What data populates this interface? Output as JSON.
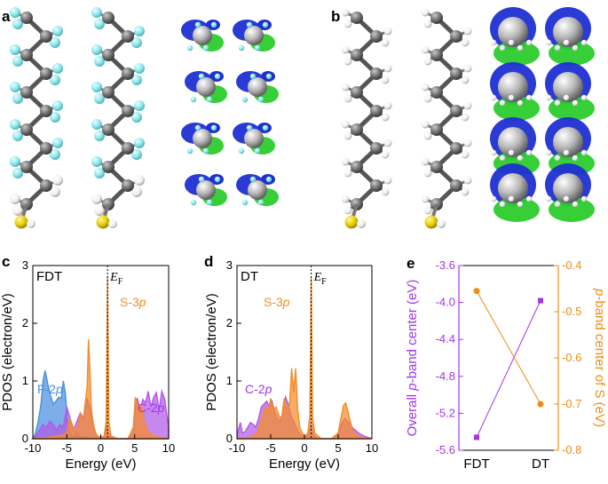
{
  "panels": {
    "a": "a",
    "b": "b",
    "c": "c",
    "d": "d",
    "e": "e"
  },
  "colors": {
    "carbon": "#6f6f6f",
    "fluorine": "#8fe6ec",
    "hydrogen": "#f4f4f4",
    "sulfur": "#e7cf00",
    "charge_pos": "#1f2fd2",
    "charge_neg": "#2ccc2c",
    "f2p": "#4a8fe0",
    "s3p": "#f58c28",
    "c2p": "#b05ae8",
    "violet": "#a335e8",
    "orange": "#f08c14"
  },
  "chart_data": [
    {
      "id": "c",
      "type": "area",
      "label": "FDT",
      "ef_label": "E",
      "ef_sub": "F",
      "xlabel": "Energy (eV)",
      "ylabel": "PDOS (electron/eV)",
      "xlim": [
        -10,
        10
      ],
      "ylim": [
        0,
        3
      ],
      "xticks": [
        -10,
        -5,
        0,
        5,
        10
      ],
      "yticks": [
        0,
        1,
        2,
        3
      ],
      "fermi": 1.0,
      "series": [
        {
          "name": "F-2p",
          "color": "#4a8fe0",
          "x": [
            -10,
            -9.6,
            -9.2,
            -8.8,
            -8.5,
            -8.2,
            -7.8,
            -7.4,
            -7.0,
            -6.6,
            -6.2,
            -5.8,
            -5.5,
            -5.2,
            -4.9,
            -4.6,
            -4.3,
            -4.0,
            -3.5,
            -3.0,
            -2.0,
            0,
            10
          ],
          "y": [
            0,
            0.1,
            0.3,
            0.6,
            1.0,
            1.18,
            0.95,
            0.75,
            0.6,
            0.65,
            0.72,
            0.7,
            1.0,
            0.78,
            0.3,
            0.12,
            0.06,
            0.03,
            0.1,
            0.04,
            0.02,
            0,
            0
          ]
        },
        {
          "name": "C-2p",
          "color": "#b05ae8",
          "x": [
            -10,
            -9.7,
            -9.4,
            -9.0,
            -8.5,
            -8.0,
            -7.5,
            -7.0,
            -6.5,
            -6.0,
            -5.5,
            -5.0,
            -4.5,
            -4.0,
            -3.5,
            -3.0,
            -2.5,
            -2.0,
            -1.5,
            -1.0,
            -0.5,
            0,
            0.5,
            0.7,
            0.9,
            1.1,
            1.3,
            1.5,
            2.0,
            3.0,
            4.0,
            4.8,
            5.1,
            5.4,
            5.8,
            6.2,
            6.6,
            7.0,
            7.4,
            7.8,
            8.2,
            8.6,
            9.0,
            9.4,
            9.8,
            10
          ],
          "y": [
            0,
            0.02,
            0.08,
            0.15,
            0.25,
            0.2,
            0.3,
            0.25,
            0.15,
            0.25,
            0.2,
            0.55,
            0.35,
            0.15,
            0.3,
            0.45,
            0.35,
            0.7,
            0.5,
            0.15,
            0.05,
            0.02,
            0.05,
            0.12,
            0.22,
            0.12,
            0.05,
            0.02,
            0,
            0,
            0,
            0.1,
            0.55,
            0.7,
            0.5,
            0.68,
            0.62,
            0.82,
            0.55,
            0.72,
            0.8,
            0.5,
            0.82,
            0.7,
            0.35,
            0.2
          ]
        },
        {
          "name": "S-3p",
          "color": "#f58c28",
          "x": [
            -10,
            -8.0,
            -6.0,
            -5.0,
            -4.6,
            -4.2,
            -3.8,
            -3.4,
            -3.0,
            -2.6,
            -2.3,
            -2.0,
            -1.8,
            -1.6,
            -1.4,
            -1.2,
            -1.0,
            -0.6,
            0,
            0.5,
            0.8,
            0.95,
            1.0,
            1.05,
            1.2,
            1.5,
            2.5,
            4.0,
            4.8,
            5.1,
            5.4,
            5.7,
            6.0,
            6.4,
            7.0,
            8.0,
            10
          ],
          "y": [
            0,
            0.02,
            0.05,
            0.1,
            0.35,
            0.25,
            0.12,
            0.2,
            0.45,
            0.3,
            0.6,
            0.9,
            1.72,
            1.2,
            0.55,
            0.35,
            0.2,
            0.05,
            0.02,
            0.05,
            0.3,
            2.2,
            2.82,
            2.2,
            0.3,
            0.05,
            0,
            0,
            0.2,
            0.72,
            0.6,
            0.45,
            0.58,
            0.3,
            0.12,
            0.04,
            0
          ]
        }
      ],
      "annotations": [
        {
          "text": "F-2",
          "italic": "p",
          "color": "#4a8fe0"
        },
        {
          "text": "S-3",
          "italic": "p",
          "color": "#f58c28"
        },
        {
          "text": "C-2",
          "italic": "p",
          "color": "#a335e8"
        }
      ]
    },
    {
      "id": "d",
      "type": "area",
      "label": "DT",
      "ef_label": "E",
      "ef_sub": "F",
      "xlabel": "Energy (eV)",
      "ylabel": "PDOS (electron/eV)",
      "xlim": [
        -10,
        10
      ],
      "ylim": [
        0,
        3
      ],
      "xticks": [
        -10,
        -5,
        0,
        5,
        10
      ],
      "yticks": [
        0,
        1,
        2,
        3
      ],
      "fermi": 1.0,
      "series": [
        {
          "name": "C-2p",
          "color": "#b05ae8",
          "x": [
            -10,
            -9.8,
            -9.5,
            -9.2,
            -8.8,
            -8.4,
            -8.0,
            -7.6,
            -7.2,
            -6.8,
            -6.4,
            -6.0,
            -5.6,
            -5.2,
            -4.8,
            -4.4,
            -4.0,
            -3.6,
            -3.2,
            -2.8,
            -2.4,
            -2.0,
            -1.6,
            -1.2,
            -0.8,
            -0.4,
            0,
            0.5,
            0.8,
            1.0,
            1.2,
            1.5,
            2.0,
            3.0,
            4.0,
            4.8,
            5.2,
            5.6,
            6.0,
            6.4,
            6.8,
            7.2,
            7.8,
            8.4,
            9.0,
            9.5,
            10
          ],
          "y": [
            0,
            0.15,
            0.28,
            0.1,
            0.12,
            0.2,
            0.28,
            0.25,
            0.2,
            0.35,
            0.55,
            0.6,
            0.65,
            0.55,
            0.65,
            0.45,
            0.35,
            0.3,
            0.45,
            0.72,
            0.6,
            0.4,
            0.3,
            0.2,
            0.1,
            0.05,
            0.02,
            0.05,
            0.15,
            0.25,
            0.12,
            0.04,
            0,
            0,
            0,
            0.05,
            0.15,
            0.28,
            0.35,
            0.3,
            0.25,
            0.18,
            0.12,
            0.07,
            0.04,
            0.02,
            0
          ]
        },
        {
          "name": "S-3p",
          "color": "#f58c28",
          "x": [
            -10,
            -8.0,
            -7.0,
            -6.6,
            -6.2,
            -5.8,
            -5.4,
            -5.0,
            -4.6,
            -4.2,
            -3.8,
            -3.4,
            -3.0,
            -2.6,
            -2.2,
            -1.9,
            -1.6,
            -1.3,
            -1.0,
            -0.7,
            -0.3,
            0,
            0.5,
            0.8,
            0.92,
            0.98,
            1.0,
            1.02,
            1.08,
            1.2,
            1.5,
            2.5,
            4.0,
            5.0,
            5.4,
            5.8,
            6.1,
            6.4,
            6.8,
            7.2,
            7.8,
            8.5,
            10
          ],
          "y": [
            0,
            0.02,
            0.1,
            0.25,
            0.4,
            0.55,
            0.45,
            0.7,
            0.5,
            0.55,
            0.4,
            0.35,
            0.7,
            0.5,
            0.6,
            1.22,
            0.8,
            1.22,
            0.5,
            0.2,
            0.1,
            0.03,
            0.1,
            0.4,
            1.8,
            2.6,
            2.8,
            2.6,
            1.8,
            0.4,
            0.1,
            0,
            0,
            0.1,
            0.35,
            0.58,
            0.62,
            0.5,
            0.3,
            0.12,
            0.05,
            0.02,
            0
          ]
        }
      ],
      "annotations": [
        {
          "text": "S-3",
          "italic": "p",
          "color": "#f58c28"
        },
        {
          "text": "C-2",
          "italic": "p",
          "color": "#a335e8"
        }
      ]
    },
    {
      "id": "e",
      "type": "line",
      "categories": [
        "FDT",
        "DT"
      ],
      "left_axis": {
        "ylabel_pre": "Overall ",
        "ylabel_italic": "p",
        "ylabel_post": "-band center (eV)",
        "ylim": [
          -5.6,
          -3.6
        ],
        "ticks": [
          -5.6,
          -5.2,
          -4.8,
          -4.4,
          -4.0,
          -3.6
        ],
        "tick_labels": [
          "-5.6",
          "-5.2",
          "-4.8",
          "-4.4",
          "-4.0",
          "-3.6"
        ],
        "color": "#a335e8"
      },
      "right_axis": {
        "ylabel_pre": "",
        "ylabel_italic": "p",
        "ylabel_post": "-band center of S (eV)",
        "ylim": [
          -0.8,
          -0.4
        ],
        "ticks": [
          -0.8,
          -0.7,
          -0.6,
          -0.5,
          -0.4
        ],
        "tick_labels": [
          "-0.8",
          "-0.7",
          "-0.6",
          "-0.5",
          "-0.4"
        ],
        "color": "#f08c14"
      },
      "series": [
        {
          "axis": "left",
          "color": "#a335e8",
          "marker": "square",
          "values": [
            -5.46,
            -3.98
          ]
        },
        {
          "axis": "right",
          "color": "#f08c14",
          "marker": "circle",
          "values": [
            -0.455,
            -0.7
          ]
        }
      ]
    }
  ]
}
